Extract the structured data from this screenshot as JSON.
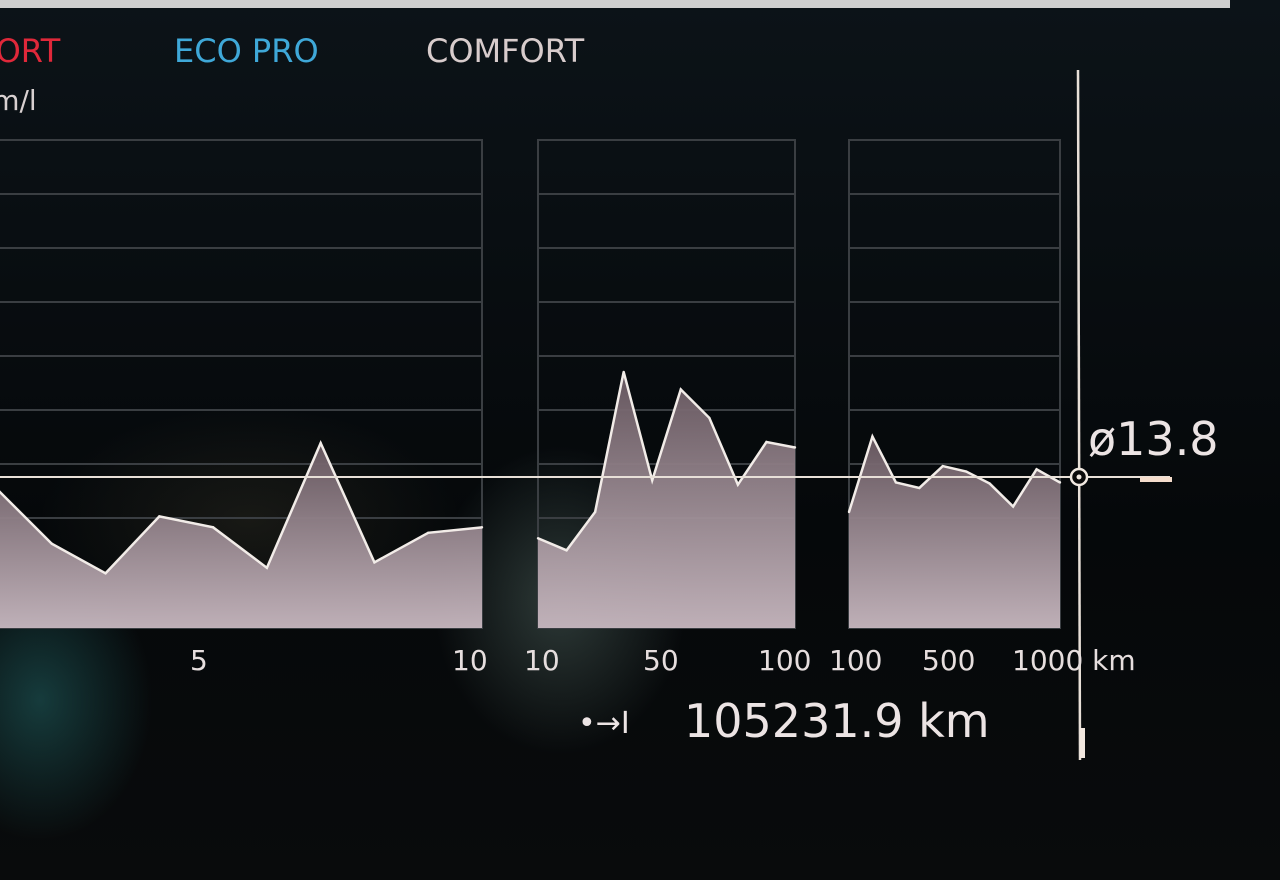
{
  "modes": [
    {
      "label": "SPORT",
      "color": "#e0283a"
    },
    {
      "label": "ECO PRO",
      "color": "#3fa8d8"
    },
    {
      "label": "COMFORT",
      "color": "#d8cccc"
    }
  ],
  "unit": "km/l",
  "average": {
    "symbol": "ø",
    "value": "13.8"
  },
  "odometer": {
    "icon": "trip-arrow-icon",
    "icon_glyph": "•→I",
    "value": "105231.9 km"
  },
  "chart_data": {
    "type": "area",
    "ylabel": "km/l",
    "ylim": [
      0,
      44.6
    ],
    "grid": true,
    "average_line": 13.8,
    "panels": [
      {
        "tick_labels": [
          "5",
          "10"
        ],
        "values": [
          12.6,
          7.7,
          5.0,
          10.2,
          9.2,
          5.5,
          16.9,
          6.0,
          8.7,
          9.2
        ]
      },
      {
        "tick_labels": [
          "10",
          "50",
          "100"
        ],
        "values": [
          8.2,
          7.1,
          10.6,
          23.4,
          13.5,
          21.8,
          19.2,
          13.1,
          17.0,
          16.5
        ]
      },
      {
        "tick_labels": [
          "100",
          "500",
          "1000 km"
        ],
        "values": [
          10.6,
          17.5,
          13.3,
          12.8,
          14.8,
          14.3,
          13.2,
          11.1,
          14.5,
          13.3
        ]
      }
    ]
  }
}
